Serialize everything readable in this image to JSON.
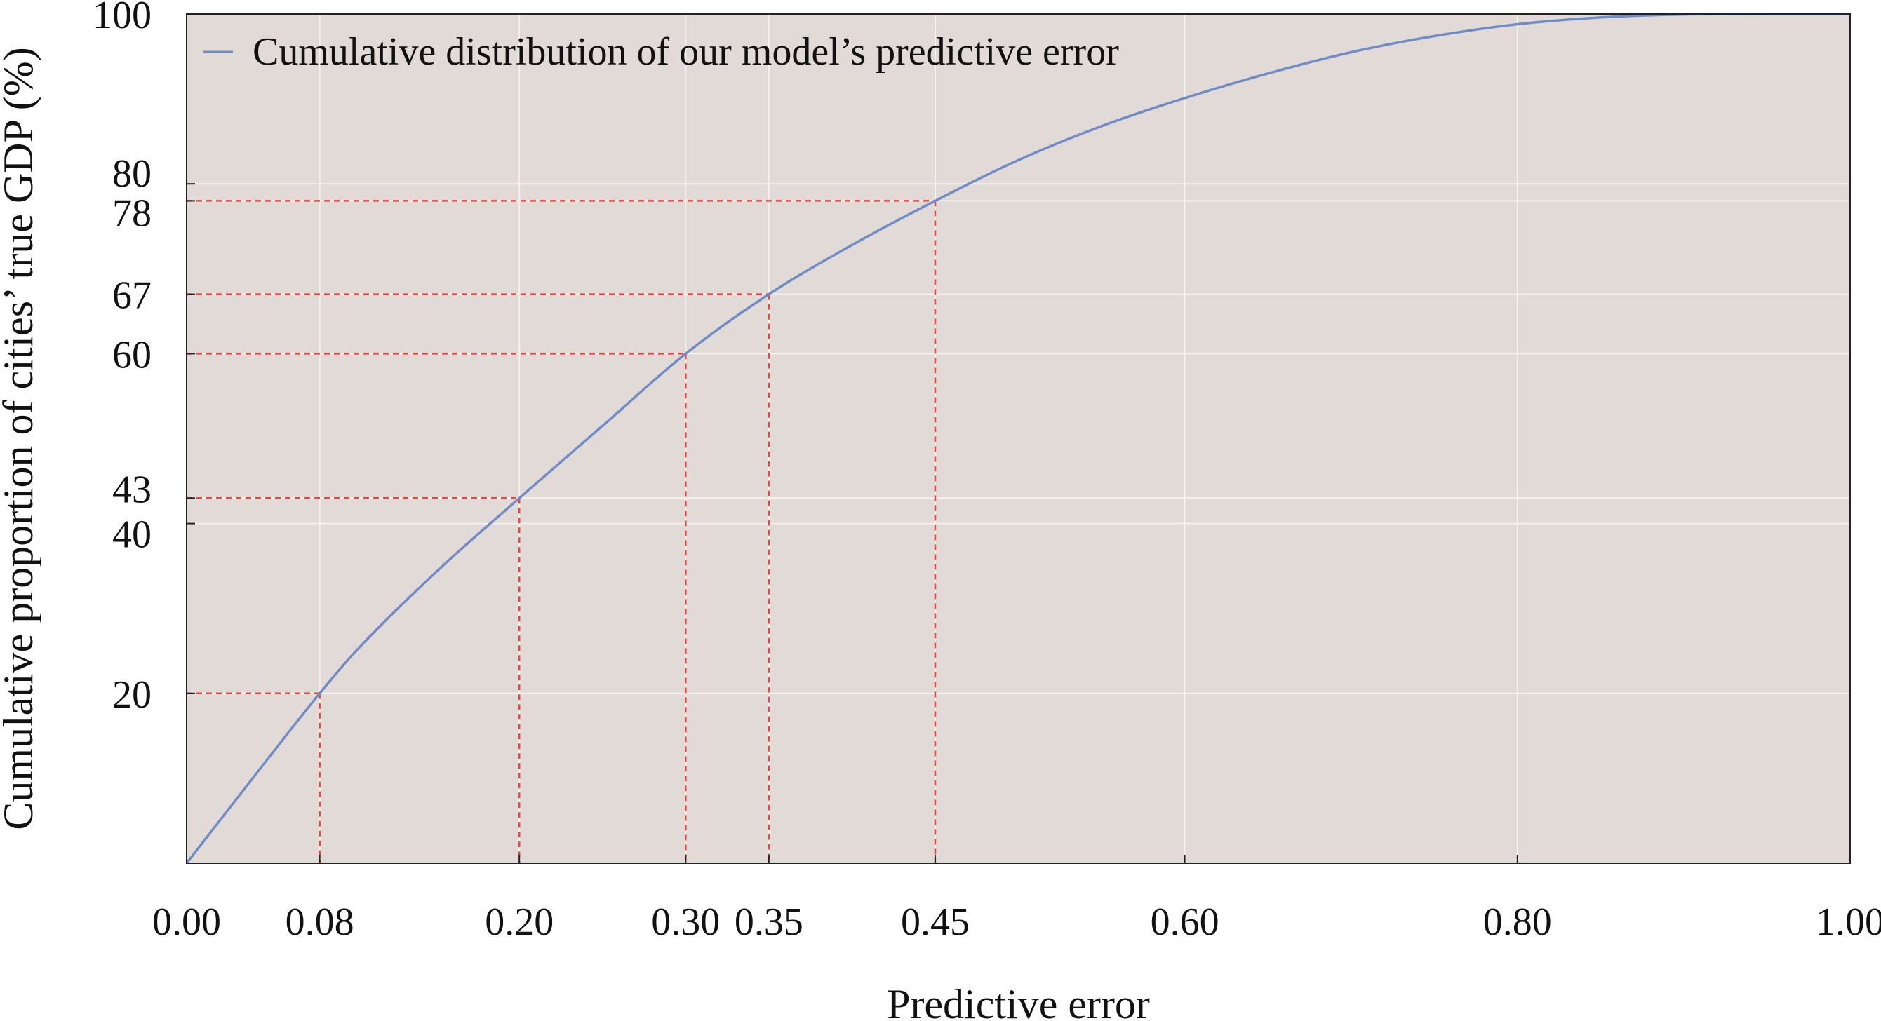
{
  "chart_data": {
    "type": "line",
    "title": "",
    "xlabel": "Predictive error",
    "ylabel": "Cumulative proportion of cities’ true GDP (%)",
    "xlim": [
      0,
      1
    ],
    "ylim": [
      0,
      100
    ],
    "x_ticks": [
      "0.00",
      "0.08",
      "0.20",
      "0.30",
      "0.35",
      "0.45",
      "0.60",
      "0.80",
      "1.00"
    ],
    "y_ticks": [
      "20",
      "40",
      "43",
      "60",
      "67",
      "78",
      "80",
      "100"
    ],
    "grid": true,
    "legend_position": "top-left",
    "background_color": "#e2dad6",
    "line_color": "#6f8cc7",
    "marker_line_color": "#e8463c",
    "series": [
      {
        "name": "Cumulative distribution of our model’s predictive error",
        "x": [
          0.0,
          0.05,
          0.08,
          0.1,
          0.15,
          0.2,
          0.25,
          0.3,
          0.35,
          0.4,
          0.45,
          0.5,
          0.55,
          0.6,
          0.65,
          0.7,
          0.75,
          0.8,
          0.85,
          0.9,
          0.95,
          1.0
        ],
        "y": [
          0,
          12.6,
          20,
          24.6,
          34.3,
          43,
          51.5,
          60,
          67,
          72.8,
          78,
          82.8,
          86.8,
          90.1,
          93.0,
          95.5,
          97.4,
          98.8,
          99.6,
          99.95,
          100,
          100
        ]
      }
    ],
    "reference_points": [
      {
        "x": 0.08,
        "y": 20
      },
      {
        "x": 0.2,
        "y": 43
      },
      {
        "x": 0.3,
        "y": 60
      },
      {
        "x": 0.35,
        "y": 67
      },
      {
        "x": 0.45,
        "y": 78
      }
    ]
  }
}
